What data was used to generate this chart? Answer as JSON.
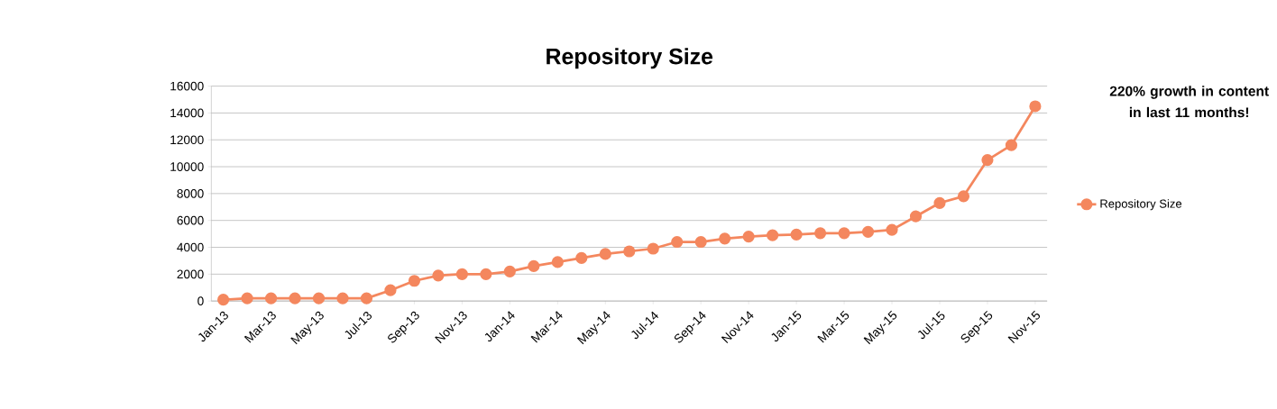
{
  "chart_data": {
    "type": "line",
    "title": "Repository Size",
    "categories": [
      "Jan-13",
      null,
      "Mar-13",
      null,
      "May-13",
      null,
      "Jul-13",
      null,
      "Sep-13",
      null,
      "Nov-13",
      null,
      "Jan-14",
      null,
      "Mar-14",
      null,
      "May-14",
      null,
      "Jul-14",
      null,
      "Sep-14",
      null,
      "Nov-14",
      null,
      "Jan-15",
      null,
      "Mar-15",
      null,
      "May-15",
      null,
      "Jul-15",
      null,
      "Sep-15",
      null,
      "Nov-15"
    ],
    "series": [
      {
        "name": "Repository Size",
        "color": "#f4875e",
        "values": [
          100,
          200,
          200,
          200,
          200,
          200,
          200,
          800,
          1500,
          1900,
          2000,
          2000,
          2200,
          2600,
          2900,
          3200,
          3500,
          3700,
          3900,
          4400,
          4400,
          4650,
          4800,
          4900,
          4950,
          5050,
          5050,
          5150,
          5300,
          6300,
          7300,
          7800,
          10500,
          11600,
          14500
        ]
      }
    ],
    "ylim": [
      0,
      16000
    ],
    "yticks": [
      0,
      2000,
      4000,
      6000,
      8000,
      10000,
      12000,
      14000,
      16000
    ],
    "grid": "y",
    "legend": "right",
    "marker": "circle",
    "line_style": "solid",
    "annotations": [
      "**220% growth in content in last 11 months!**"
    ]
  }
}
